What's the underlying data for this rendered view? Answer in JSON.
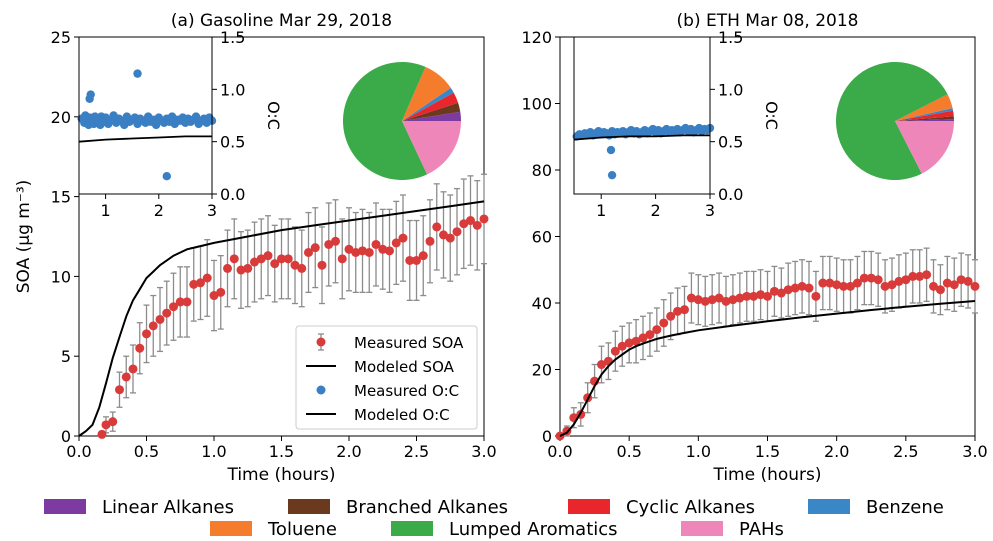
{
  "chart_data": [
    {
      "type": "line",
      "title": "(a) Gasoline Mar 29, 2018",
      "xlabel": "Time (hours)",
      "ylabel": "SOA (μg m⁻³)",
      "xlim": [
        0,
        3.0
      ],
      "ylim": [
        0,
        25
      ],
      "xticks": [
        "0.0",
        "0.5",
        "1.0",
        "1.5",
        "2.0",
        "2.5",
        "3.0"
      ],
      "yticks": [
        "0",
        "5",
        "10",
        "15",
        "20",
        "25"
      ],
      "legend": {
        "position": "lower-right",
        "entries": [
          "Measured SOA",
          "Modeled SOA",
          "Measured O:C",
          "Modeled O:C"
        ]
      },
      "series": [
        {
          "name": "Measured SOA",
          "x": [
            0.17,
            0.2,
            0.25,
            0.3,
            0.35,
            0.4,
            0.45,
            0.5,
            0.55,
            0.6,
            0.65,
            0.7,
            0.75,
            0.8,
            0.85,
            0.9,
            0.95,
            1.0,
            1.05,
            1.1,
            1.15,
            1.2,
            1.25,
            1.3,
            1.35,
            1.4,
            1.45,
            1.5,
            1.55,
            1.6,
            1.65,
            1.7,
            1.75,
            1.8,
            1.85,
            1.9,
            1.95,
            2.0,
            2.05,
            2.1,
            2.15,
            2.2,
            2.25,
            2.3,
            2.35,
            2.4,
            2.45,
            2.5,
            2.55,
            2.6,
            2.65,
            2.7,
            2.75,
            2.8,
            2.85,
            2.9,
            2.95,
            3.0
          ],
          "y": [
            0.1,
            0.7,
            0.9,
            2.9,
            3.7,
            4.2,
            5.5,
            6.4,
            6.9,
            7.3,
            7.7,
            8.1,
            8.4,
            8.4,
            9.5,
            9.6,
            9.9,
            8.8,
            9.0,
            10.5,
            11.1,
            10.4,
            10.5,
            10.9,
            11.1,
            11.3,
            10.8,
            11.1,
            11.1,
            10.7,
            10.5,
            11.5,
            11.8,
            10.7,
            12.0,
            12.2,
            11.1,
            11.7,
            11.5,
            11.6,
            11.5,
            12.0,
            11.7,
            11.6,
            12.1,
            12.4,
            11.0,
            11.0,
            11.3,
            12.2,
            13.1,
            12.6,
            12.4,
            12.8,
            13.3,
            13.5,
            13.2,
            13.6
          ],
          "err": [
            0.2,
            0.5,
            0.6,
            1.1,
            1.3,
            1.5,
            1.6,
            1.8,
            1.9,
            2.0,
            2.0,
            2.1,
            2.2,
            2.2,
            2.3,
            2.3,
            2.4,
            2.2,
            2.3,
            2.4,
            2.5,
            2.4,
            2.4,
            2.5,
            2.5,
            2.5,
            2.4,
            2.5,
            2.5,
            2.4,
            2.4,
            2.5,
            2.5,
            2.4,
            2.6,
            2.6,
            2.5,
            2.6,
            2.5,
            2.6,
            2.5,
            2.6,
            2.5,
            2.6,
            2.6,
            2.7,
            2.5,
            2.5,
            2.5,
            2.6,
            2.7,
            2.7,
            2.7,
            2.7,
            2.8,
            2.8,
            2.8,
            2.8
          ]
        },
        {
          "name": "Modeled SOA",
          "x": [
            0.0,
            0.05,
            0.1,
            0.15,
            0.2,
            0.25,
            0.3,
            0.35,
            0.4,
            0.45,
            0.5,
            0.55,
            0.6,
            0.65,
            0.7,
            0.75,
            0.8,
            0.9,
            1.0,
            1.25,
            1.5,
            1.75,
            2.0,
            2.25,
            2.5,
            2.75,
            3.0
          ],
          "y": [
            0.0,
            0.3,
            0.7,
            1.8,
            3.3,
            4.9,
            6.2,
            7.5,
            8.5,
            9.2,
            9.9,
            10.3,
            10.7,
            11.0,
            11.3,
            11.5,
            11.7,
            11.9,
            12.1,
            12.5,
            12.9,
            13.2,
            13.5,
            13.8,
            14.1,
            14.4,
            14.7
          ]
        }
      ],
      "inset": {
        "type": "scatter",
        "ylabel": "O:C",
        "xlim": [
          0.5,
          3.0
        ],
        "ylim": [
          0.0,
          1.5
        ],
        "xticks": [
          "1",
          "2",
          "3"
        ],
        "yticks": [
          "0.0",
          "0.5",
          "1.0",
          "1.5"
        ],
        "measured_oc": {
          "x": [
            0.55,
            0.6,
            0.62,
            0.65,
            0.68,
            0.7,
            0.72,
            0.75,
            0.78,
            0.8,
            0.82,
            0.85,
            0.88,
            0.9,
            0.92,
            0.95,
            0.98,
            1.0,
            1.05,
            1.1,
            1.15,
            1.2,
            1.25,
            1.3,
            1.35,
            1.4,
            1.45,
            1.5,
            1.55,
            1.6,
            1.65,
            1.7,
            1.75,
            1.8,
            1.85,
            1.9,
            1.95,
            2.0,
            2.05,
            2.1,
            2.15,
            2.2,
            2.25,
            2.3,
            2.35,
            2.4,
            2.45,
            2.5,
            2.55,
            2.6,
            2.65,
            2.7,
            2.75,
            2.8,
            2.85,
            2.9,
            2.95,
            3.0,
            0.7,
            0.72,
            1.6,
            2.15
          ],
          "y": [
            0.72,
            0.68,
            0.75,
            0.7,
            0.66,
            0.73,
            0.69,
            0.71,
            0.67,
            0.74,
            0.7,
            0.68,
            0.72,
            0.66,
            0.74,
            0.7,
            0.69,
            0.73,
            0.67,
            0.71,
            0.75,
            0.68,
            0.72,
            0.7,
            0.66,
            0.74,
            0.69,
            0.71,
            0.73,
            0.67,
            0.72,
            0.7,
            0.68,
            0.74,
            0.69,
            0.71,
            0.66,
            0.73,
            0.7,
            0.68,
            0.72,
            0.69,
            0.74,
            0.67,
            0.71,
            0.7,
            0.73,
            0.68,
            0.72,
            0.69,
            0.71,
            0.74,
            0.67,
            0.7,
            0.72,
            0.68,
            0.73,
            0.7,
            0.91,
            0.95,
            1.15,
            0.17
          ]
        },
        "modeled_oc": {
          "x": [
            0.5,
            1.0,
            1.5,
            2.0,
            2.5,
            3.0
          ],
          "y": [
            0.5,
            0.52,
            0.53,
            0.54,
            0.55,
            0.55
          ]
        }
      },
      "pie": {
        "labels": [
          "Linear Alkanes",
          "Branched Alkanes",
          "Cyclic Alkanes",
          "Benzene",
          "Toluene",
          "Lumped Aromatics",
          "PAHs"
        ],
        "values": [
          2.5,
          2.5,
          3.0,
          1.5,
          9.0,
          63.5,
          18.0
        ]
      }
    },
    {
      "type": "line",
      "title": "(b) ETH Mar 08, 2018",
      "xlabel": "Time (hours)",
      "ylabel": "",
      "xlim": [
        0,
        3.0
      ],
      "ylim": [
        0,
        120
      ],
      "xticks": [
        "0.0",
        "0.5",
        "1.0",
        "1.5",
        "2.0",
        "2.5",
        "3.0"
      ],
      "yticks": [
        "0",
        "20",
        "40",
        "60",
        "80",
        "100",
        "120"
      ],
      "series": [
        {
          "name": "Measured SOA",
          "x": [
            0.0,
            0.05,
            0.1,
            0.15,
            0.2,
            0.25,
            0.3,
            0.35,
            0.4,
            0.45,
            0.5,
            0.55,
            0.6,
            0.65,
            0.7,
            0.75,
            0.8,
            0.85,
            0.9,
            0.95,
            1.0,
            1.05,
            1.1,
            1.15,
            1.2,
            1.25,
            1.3,
            1.35,
            1.4,
            1.45,
            1.5,
            1.55,
            1.6,
            1.65,
            1.7,
            1.75,
            1.8,
            1.85,
            1.9,
            1.95,
            2.0,
            2.05,
            2.1,
            2.15,
            2.2,
            2.25,
            2.3,
            2.35,
            2.4,
            2.45,
            2.5,
            2.55,
            2.6,
            2.65,
            2.7,
            2.75,
            2.8,
            2.85,
            2.9,
            2.95,
            3.0
          ],
          "y": [
            0.0,
            1.5,
            5.5,
            6.5,
            11.5,
            16.5,
            21.5,
            22.5,
            25.5,
            27.0,
            28.0,
            28.5,
            29.5,
            30.5,
            32.0,
            34.0,
            36.0,
            37.5,
            38.0,
            41.5,
            41.0,
            40.5,
            41.0,
            41.5,
            40.5,
            41.0,
            41.5,
            42.0,
            42.0,
            42.5,
            42.0,
            43.5,
            43.0,
            44.0,
            44.5,
            45.0,
            44.5,
            42.0,
            46.0,
            46.0,
            45.5,
            45.0,
            45.0,
            46.0,
            47.5,
            47.5,
            47.0,
            45.0,
            45.5,
            46.5,
            47.0,
            48.0,
            48.0,
            48.5,
            45.0,
            44.0,
            46.0,
            45.5,
            47.0,
            46.5,
            45.0
          ],
          "err": [
            0.5,
            1.5,
            3.0,
            3.5,
            4.5,
            5.0,
            5.5,
            5.5,
            6.0,
            6.0,
            6.0,
            6.5,
            6.5,
            6.5,
            6.5,
            7.0,
            7.0,
            7.0,
            7.0,
            7.5,
            7.5,
            7.5,
            7.5,
            7.5,
            7.5,
            7.5,
            7.5,
            7.5,
            7.5,
            7.5,
            7.5,
            7.5,
            7.5,
            8.0,
            8.0,
            8.0,
            8.0,
            7.5,
            8.0,
            8.0,
            8.0,
            8.0,
            8.0,
            8.0,
            8.0,
            8.0,
            8.0,
            8.0,
            8.0,
            8.0,
            8.0,
            8.0,
            8.0,
            8.0,
            8.0,
            7.5,
            8.0,
            8.0,
            8.0,
            8.0,
            8.0
          ]
        },
        {
          "name": "Modeled SOA",
          "x": [
            0.0,
            0.05,
            0.1,
            0.15,
            0.2,
            0.25,
            0.3,
            0.35,
            0.4,
            0.45,
            0.5,
            0.55,
            0.6,
            0.65,
            0.7,
            0.8,
            0.9,
            1.0,
            1.25,
            1.5,
            1.75,
            2.0,
            2.25,
            2.5,
            2.75,
            3.0
          ],
          "y": [
            0.0,
            1.0,
            3.5,
            7.0,
            11.0,
            15.0,
            18.5,
            21.0,
            23.0,
            24.5,
            26.0,
            27.0,
            27.8,
            28.5,
            29.2,
            30.2,
            31.0,
            31.8,
            33.2,
            34.5,
            35.7,
            36.8,
            37.9,
            38.9,
            39.8,
            40.6
          ]
        }
      ],
      "inset": {
        "type": "scatter",
        "ylabel": "O:C",
        "xlim": [
          0.5,
          3.0
        ],
        "ylim": [
          0.0,
          1.5
        ],
        "xticks": [
          "1",
          "2",
          "3"
        ],
        "yticks": [
          "0.0",
          "0.5",
          "1.0",
          "1.5"
        ],
        "measured_oc": {
          "x": [
            0.55,
            0.6,
            0.65,
            0.7,
            0.75,
            0.8,
            0.85,
            0.9,
            0.95,
            1.0,
            1.05,
            1.1,
            1.15,
            1.2,
            1.25,
            1.3,
            1.35,
            1.4,
            1.45,
            1.5,
            1.55,
            1.6,
            1.65,
            1.7,
            1.75,
            1.8,
            1.85,
            1.9,
            1.95,
            2.0,
            2.05,
            2.1,
            2.15,
            2.2,
            2.25,
            2.3,
            2.35,
            2.4,
            2.45,
            2.5,
            2.55,
            2.6,
            2.65,
            2.7,
            2.75,
            2.8,
            2.85,
            2.9,
            2.95,
            3.0,
            1.18,
            1.2
          ],
          "y": [
            0.55,
            0.57,
            0.56,
            0.58,
            0.57,
            0.59,
            0.56,
            0.58,
            0.6,
            0.57,
            0.59,
            0.58,
            0.56,
            0.6,
            0.57,
            0.59,
            0.58,
            0.6,
            0.57,
            0.59,
            0.61,
            0.58,
            0.6,
            0.57,
            0.59,
            0.61,
            0.58,
            0.6,
            0.62,
            0.59,
            0.61,
            0.58,
            0.6,
            0.62,
            0.59,
            0.61,
            0.6,
            0.62,
            0.59,
            0.61,
            0.63,
            0.6,
            0.62,
            0.59,
            0.61,
            0.63,
            0.6,
            0.62,
            0.61,
            0.63,
            0.42,
            0.18
          ]
        },
        "modeled_oc": {
          "x": [
            0.5,
            1.0,
            1.5,
            2.0,
            2.5,
            3.0
          ],
          "y": [
            0.52,
            0.54,
            0.55,
            0.55,
            0.56,
            0.56
          ]
        }
      },
      "pie": {
        "labels": [
          "Linear Alkanes",
          "Branched Alkanes",
          "Cyclic Alkanes",
          "Benzene",
          "Toluene",
          "Lumped Aromatics",
          "PAHs"
        ],
        "values": [
          0.5,
          0.8,
          1.5,
          0.7,
          4.0,
          75.0,
          17.5
        ]
      }
    }
  ],
  "bottom_legend": {
    "items": [
      {
        "label": "Linear Alkanes",
        "color": "#7d3aa0"
      },
      {
        "label": "Branched Alkanes",
        "color": "#6b3a1e"
      },
      {
        "label": "Cyclic Alkanes",
        "color": "#e8262b"
      },
      {
        "label": "Benzene",
        "color": "#3a87c8"
      },
      {
        "label": "Toluene",
        "color": "#f47c2c"
      },
      {
        "label": "Lumped Aromatics",
        "color": "#3aab48"
      },
      {
        "label": "PAHs",
        "color": "#ef86b9"
      }
    ]
  },
  "colors": {
    "measured_soa": "#d93a3a",
    "measured_oc": "#3a7fc4",
    "model_line": "#000000",
    "errorbar": "#8c8c8c"
  }
}
